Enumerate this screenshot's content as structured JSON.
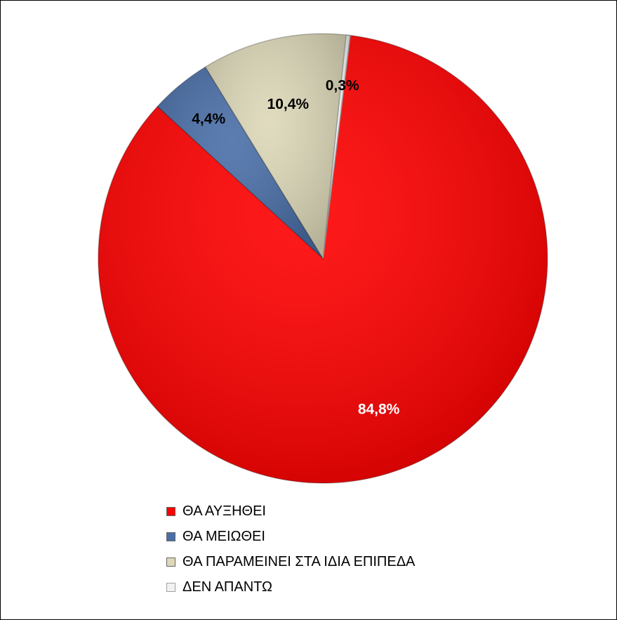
{
  "chart_data": {
    "type": "pie",
    "categories": [
      "ΘΑ ΑΥΞΗΘΕΙ",
      "ΘΑ ΜΕΙΩΘΕΙ",
      "ΘΑ ΠΑΡΑΜΕΙΝΕΙ ΣΤΑ ΙΔΙΑ ΕΠΙΠΕΔΑ",
      "ΔΕΝ ΑΠΑΝΤΩ"
    ],
    "values": [
      84.8,
      4.4,
      10.4,
      0.3
    ],
    "data_labels": [
      "84,8%",
      "4,4%",
      "10,4%",
      "0,3%"
    ],
    "colors": [
      "#ff0000",
      "#4a6fa8",
      "#ddd8b8",
      "#f2f2f2"
    ],
    "label_colors": [
      "#ffffff",
      "#000000",
      "#000000",
      "#000000"
    ],
    "legend_position": "bottom",
    "title": ""
  },
  "legend": {
    "items": [
      {
        "label": "ΘΑ ΑΥΞΗΘΕΙ",
        "color": "#ff0000"
      },
      {
        "label": "ΘΑ ΜΕΙΩΘΕΙ",
        "color": "#4a6fa8"
      },
      {
        "label": "ΘΑ ΠΑΡΑΜΕΙΝΕΙ ΣΤΑ ΙΔΙΑ ΕΠΙΠΕΔΑ",
        "color": "#ddd8b8"
      },
      {
        "label": "ΔΕΝ ΑΠΑΝΤΩ",
        "color": "#f2f2f2"
      }
    ]
  }
}
